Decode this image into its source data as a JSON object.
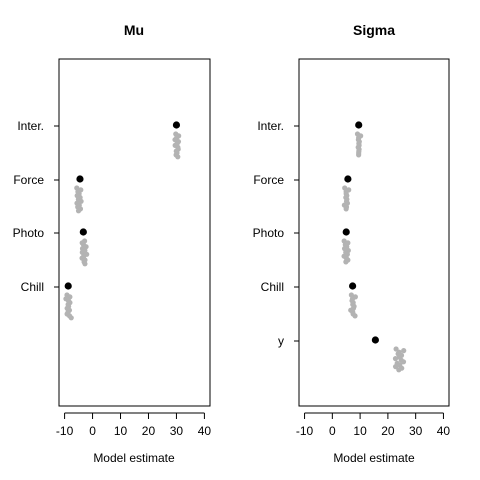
{
  "chart_data": [
    {
      "type": "scatter",
      "title": "Mu",
      "xlabel": "Model estimate",
      "xlim": [
        -12,
        42
      ],
      "x_ticks": [
        -10,
        0,
        10,
        20,
        30,
        40
      ],
      "x_tick_labels": [
        "-10",
        "0",
        "10",
        "20",
        "30",
        "40"
      ],
      "categories": [
        "Inter.",
        "Force",
        "Photo",
        "Chill"
      ],
      "point_colors": {
        "estimate": "#000000",
        "replicates": "#b3b3b3"
      },
      "estimates": [
        30,
        -4.5,
        -3.3,
        -8.7
      ],
      "replicates": [
        [
          29.8,
          30.6,
          30.2,
          29.4,
          30.9,
          30.1,
          29.6,
          30.4,
          30.8,
          29.9,
          30.3,
          29.7,
          30.5
        ],
        [
          -5.6,
          -4.4,
          -5.1,
          -4.9,
          -5.3,
          -4.6,
          -5.0,
          -4.2,
          -5.4,
          -4.8,
          -5.2,
          -4.5,
          -5.0
        ],
        [
          -2.8,
          -3.9,
          -3.1,
          -2.4,
          -3.4,
          -2.9,
          -3.6,
          -2.2,
          -3.0,
          -3.8,
          -2.6,
          -3.2,
          -2.7
        ],
        [
          -9.1,
          -8.3,
          -9.4,
          -8.7,
          -7.9,
          -8.9,
          -8.5,
          -9.2,
          -8.1,
          -8.8,
          -9.0,
          -8.4,
          -7.6
        ]
      ]
    },
    {
      "type": "scatter",
      "title": "Sigma",
      "xlabel": "Model estimate",
      "xlim": [
        -12,
        42
      ],
      "x_ticks": [
        -10,
        0,
        10,
        20,
        30,
        40
      ],
      "x_tick_labels": [
        "-10",
        "0",
        "10",
        "20",
        "30",
        "40"
      ],
      "categories": [
        "Inter.",
        "Force",
        "Photo",
        "Chill",
        "y"
      ],
      "point_colors": {
        "estimate": "#000000",
        "replicates": "#b3b3b3"
      },
      "estimates": [
        9.5,
        5.6,
        5.0,
        7.3,
        15.5
      ],
      "replicates": [
        [
          9.1,
          10.0,
          9.6,
          9.3,
          9.9,
          9.4,
          9.7,
          9.2,
          9.8,
          9.5,
          9.6,
          9.3
        ],
        [
          4.5,
          5.7,
          5.1,
          4.9,
          5.4,
          4.7,
          5.3,
          5.0,
          5.6,
          4.3,
          5.2,
          4.8
        ],
        [
          4.3,
          5.4,
          4.8,
          5.1,
          4.6,
          5.6,
          4.9,
          5.3,
          4.4,
          5.0,
          5.7,
          4.7
        ],
        [
          6.9,
          8.1,
          7.4,
          7.0,
          7.7,
          7.2,
          7.9,
          7.5,
          6.8,
          7.3,
          7.6,
          8.0
        ],
        [
          23.0,
          25.5,
          24.2,
          23.6,
          25.1,
          24.0,
          22.8,
          24.7,
          25.8,
          23.3,
          24.4,
          22.6,
          25.0,
          23.8
        ]
      ]
    }
  ]
}
